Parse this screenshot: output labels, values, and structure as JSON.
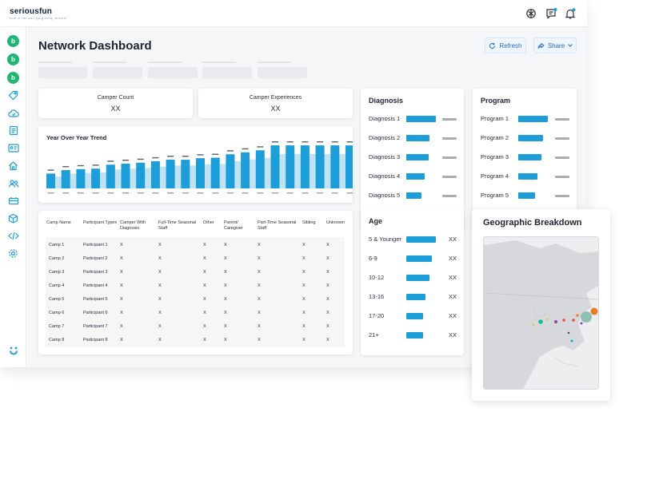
{
  "app": {
    "logo_text": "seriousfun",
    "logo_sub": "hole in the wall gang camp network"
  },
  "header": {
    "icons": [
      "chatgpt-icon",
      "chat-bubble-icon",
      "bell-icon"
    ]
  },
  "sidebar": {
    "icons": [
      "b-badge-icon",
      "b-badge-icon",
      "b-badge-icon",
      "tag-icon",
      "cloud-icon",
      "calendar-list-icon",
      "id-card-icon",
      "home-icon",
      "users-icon",
      "bus-icon",
      "cube-icon",
      "code-icon",
      "gear-icon"
    ],
    "bottom_icon": "smiley-icon"
  },
  "page": {
    "title": "Network Dashboard",
    "refresh_label": "Refresh",
    "share_label": "Share"
  },
  "stats": [
    {
      "label": "Camper Count",
      "value": "XX"
    },
    {
      "label": "Camper Experiences",
      "value": "XX"
    }
  ],
  "trend": {
    "title": "Year Over Year Trend",
    "values": [
      0.3,
      0.37,
      0.39,
      0.4,
      0.48,
      0.5,
      0.52,
      0.55,
      0.58,
      0.58,
      0.61,
      0.62,
      0.69,
      0.73,
      0.77,
      0.87,
      0.87,
      0.87,
      0.87,
      0.87,
      0.87
    ]
  },
  "diagnosis": {
    "title": "Diagnosis",
    "items": [
      {
        "label": "Diagnosis 1",
        "level": 1.0
      },
      {
        "label": "Diagnosis 2",
        "level": 0.78
      },
      {
        "label": "Diagnosis 3",
        "level": 0.75
      },
      {
        "label": "Diagnosis 4",
        "level": 0.61
      },
      {
        "label": "Diagnosis 5",
        "level": 0.52
      }
    ]
  },
  "program": {
    "title": "Program",
    "items": [
      {
        "label": "Program 1",
        "level": 1.0
      },
      {
        "label": "Program 2",
        "level": 0.83
      },
      {
        "label": "Program 3",
        "level": 0.78
      },
      {
        "label": "Program 4",
        "level": 0.64
      },
      {
        "label": "Program 5",
        "level": 0.56
      }
    ]
  },
  "age": {
    "title": "Age",
    "items": [
      {
        "label": "5 & Younger",
        "level": 1.0,
        "value": "XX"
      },
      {
        "label": "6-9",
        "level": 0.86,
        "value": "XX"
      },
      {
        "label": "10-12",
        "level": 0.78,
        "value": "XX"
      },
      {
        "label": "13-16",
        "level": 0.64,
        "value": "XX"
      },
      {
        "label": "17-20",
        "level": 0.56,
        "value": "XX"
      },
      {
        "label": "21+",
        "level": 0.56,
        "value": "XX"
      }
    ]
  },
  "table": {
    "headers": [
      "Camp Name",
      "Participant Types",
      "Camper With Diagnosis",
      "Full-Time Seasonal Staff",
      "Other",
      "Parent/ Caregiver",
      "Part-Time Seasonal Staff",
      "Sibling",
      "Unknown"
    ],
    "rows": [
      [
        "Camp 1",
        "Participant 1",
        "X",
        "X",
        "X",
        "X",
        "X",
        "X",
        "X"
      ],
      [
        "Camp 2",
        "Participant 2",
        "X",
        "X",
        "X",
        "X",
        "X",
        "X",
        "X"
      ],
      [
        "Camp 3",
        "Participant 3",
        "X",
        "X",
        "X",
        "X",
        "X",
        "X",
        "X"
      ],
      [
        "Camp 4",
        "Participant 4",
        "X",
        "X",
        "X",
        "X",
        "X",
        "X",
        "X"
      ],
      [
        "Camp 5",
        "Participant 5",
        "X",
        "X",
        "X",
        "X",
        "X",
        "X",
        "X"
      ],
      [
        "Camp 6",
        "Participant 6",
        "X",
        "X",
        "X",
        "X",
        "X",
        "X",
        "X"
      ],
      [
        "Camp 7",
        "Participant 7",
        "X",
        "X",
        "X",
        "X",
        "X",
        "X",
        "X"
      ],
      [
        "Camp 8",
        "Participant 8",
        "X",
        "X",
        "X",
        "X",
        "X",
        "X",
        "X"
      ]
    ]
  },
  "geo": {
    "title": "Geographic Breakdown",
    "marker_colors": [
      "#e67e22",
      "#7fb8a8",
      "#1abc9c",
      "#8e44ad",
      "#e74c3c",
      "#f1c40f"
    ]
  },
  "colors": {
    "accent": "#1e9ed8",
    "accent_light": "#bfe3f5",
    "brand_green": "#22b573"
  }
}
